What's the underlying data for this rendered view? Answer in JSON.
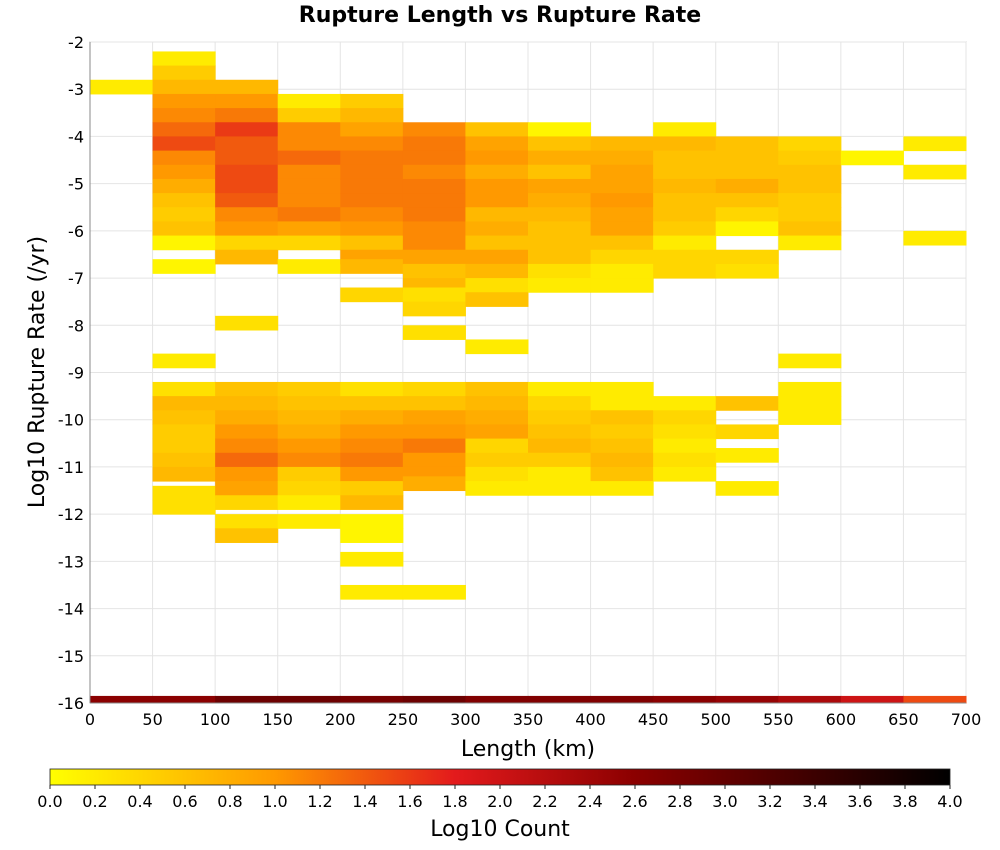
{
  "chart_data": {
    "type": "heatmap",
    "title": "Rupture Length vs Rupture Rate",
    "xlabel": "Length (km)",
    "ylabel": "Log10 Rupture Rate (/yr)",
    "xlim": [
      0,
      700
    ],
    "ylim": [
      -16,
      -2
    ],
    "x_bin_width": 50,
    "y_bin_height": 0.3,
    "grid": true,
    "x_ticks": [
      "0",
      "50",
      "100",
      "150",
      "200",
      "250",
      "300",
      "350",
      "400",
      "450",
      "500",
      "550",
      "600",
      "650",
      "700"
    ],
    "y_ticks": [
      "-2",
      "-3",
      "-4",
      "-5",
      "-6",
      "-7",
      "-8",
      "-9",
      "-10",
      "-11",
      "-12",
      "-13",
      "-14",
      "-15",
      "-16"
    ],
    "colorbar": {
      "label": "Log10 Count",
      "range": [
        0,
        4
      ],
      "ticks": [
        "0.0",
        "0.2",
        "0.4",
        "0.6",
        "0.8",
        "1.0",
        "1.2",
        "1.4",
        "1.6",
        "1.8",
        "2.0",
        "2.2",
        "2.4",
        "2.6",
        "2.8",
        "3.0",
        "3.2",
        "3.4",
        "3.6",
        "3.8",
        "4.0"
      ],
      "placement": "bottom"
    },
    "columns": [
      {
        "x": 0,
        "cells": [
          [
            -3.1,
            0.2
          ],
          [
            -16.0,
            2.6
          ]
        ]
      },
      {
        "x": 50,
        "cells": [
          [
            -2.5,
            0.2
          ],
          [
            -2.8,
            0.5
          ],
          [
            -3.1,
            0.7
          ],
          [
            -3.4,
            1.0
          ],
          [
            -3.7,
            1.1
          ],
          [
            -4.0,
            1.3
          ],
          [
            -4.3,
            1.5
          ],
          [
            -4.6,
            1.1
          ],
          [
            -4.9,
            1.0
          ],
          [
            -5.2,
            0.8
          ],
          [
            -5.5,
            0.6
          ],
          [
            -5.8,
            0.5
          ],
          [
            -6.1,
            0.6
          ],
          [
            -6.4,
            0.1
          ],
          [
            -6.9,
            0.1
          ],
          [
            -8.9,
            0.2
          ],
          [
            -9.5,
            0.3
          ],
          [
            -9.8,
            0.7
          ],
          [
            -10.1,
            0.6
          ],
          [
            -10.4,
            0.5
          ],
          [
            -10.7,
            0.5
          ],
          [
            -11.0,
            0.6
          ],
          [
            -11.3,
            0.7
          ],
          [
            -11.7,
            0.3
          ],
          [
            -12.0,
            0.3
          ],
          [
            -16.0,
            2.6
          ]
        ]
      },
      {
        "x": 100,
        "cells": [
          [
            -3.1,
            0.7
          ],
          [
            -3.4,
            1.0
          ],
          [
            -3.7,
            1.2
          ],
          [
            -4.0,
            1.6
          ],
          [
            -4.3,
            1.4
          ],
          [
            -4.6,
            1.4
          ],
          [
            -4.9,
            1.5
          ],
          [
            -5.2,
            1.5
          ],
          [
            -5.5,
            1.4
          ],
          [
            -5.8,
            1.1
          ],
          [
            -6.1,
            1.0
          ],
          [
            -6.4,
            0.4
          ],
          [
            -6.7,
            0.7
          ],
          [
            -8.1,
            0.3
          ],
          [
            -9.5,
            0.6
          ],
          [
            -9.8,
            0.7
          ],
          [
            -10.1,
            0.8
          ],
          [
            -10.4,
            1.0
          ],
          [
            -10.7,
            1.1
          ],
          [
            -11.0,
            1.3
          ],
          [
            -11.3,
            1.0
          ],
          [
            -11.6,
            0.9
          ],
          [
            -11.9,
            0.4
          ],
          [
            -12.3,
            0.3
          ],
          [
            -12.6,
            0.6
          ],
          [
            -16.0,
            2.9
          ]
        ]
      },
      {
        "x": 150,
        "cells": [
          [
            -3.4,
            0.2
          ],
          [
            -3.7,
            0.5
          ],
          [
            -4.0,
            1.1
          ],
          [
            -4.3,
            1.1
          ],
          [
            -4.6,
            1.3
          ],
          [
            -4.9,
            1.1
          ],
          [
            -5.2,
            1.1
          ],
          [
            -5.5,
            1.1
          ],
          [
            -5.8,
            1.2
          ],
          [
            -6.1,
            0.9
          ],
          [
            -6.4,
            0.4
          ],
          [
            -6.9,
            0.2
          ],
          [
            -9.5,
            0.5
          ],
          [
            -9.8,
            0.6
          ],
          [
            -10.1,
            0.7
          ],
          [
            -10.4,
            0.8
          ],
          [
            -10.7,
            1.0
          ],
          [
            -11.0,
            1.1
          ],
          [
            -11.3,
            0.5
          ],
          [
            -11.6,
            0.4
          ],
          [
            -11.9,
            0.2
          ],
          [
            -12.3,
            0.2
          ],
          [
            -16.0,
            2.9
          ]
        ]
      },
      {
        "x": 200,
        "cells": [
          [
            -3.4,
            0.5
          ],
          [
            -3.7,
            0.7
          ],
          [
            -4.0,
            0.9
          ],
          [
            -4.3,
            1.1
          ],
          [
            -4.6,
            1.2
          ],
          [
            -4.9,
            1.2
          ],
          [
            -5.2,
            1.2
          ],
          [
            -5.5,
            1.2
          ],
          [
            -5.8,
            1.1
          ],
          [
            -6.1,
            1.0
          ],
          [
            -6.4,
            0.6
          ],
          [
            -6.7,
            0.9
          ],
          [
            -6.9,
            0.7
          ],
          [
            -7.5,
            0.4
          ],
          [
            -9.5,
            0.3
          ],
          [
            -9.8,
            0.6
          ],
          [
            -10.1,
            0.8
          ],
          [
            -10.4,
            1.0
          ],
          [
            -10.7,
            1.1
          ],
          [
            -11.0,
            1.2
          ],
          [
            -11.3,
            1.0
          ],
          [
            -11.6,
            0.5
          ],
          [
            -11.9,
            0.7
          ],
          [
            -12.3,
            0.1
          ],
          [
            -12.6,
            0.1
          ],
          [
            -13.1,
            0.2
          ],
          [
            -13.8,
            0.2
          ],
          [
            -16.0,
            2.8
          ]
        ]
      },
      {
        "x": 250,
        "cells": [
          [
            -4.0,
            1.1
          ],
          [
            -4.3,
            1.2
          ],
          [
            -4.6,
            1.2
          ],
          [
            -4.9,
            1.1
          ],
          [
            -5.2,
            1.2
          ],
          [
            -5.5,
            1.2
          ],
          [
            -5.8,
            1.2
          ],
          [
            -6.1,
            1.1
          ],
          [
            -6.4,
            1.1
          ],
          [
            -6.7,
            0.9
          ],
          [
            -7.0,
            0.6
          ],
          [
            -7.3,
            0.7
          ],
          [
            -7.5,
            0.3
          ],
          [
            -7.8,
            0.4
          ],
          [
            -8.3,
            0.3
          ],
          [
            -9.5,
            0.4
          ],
          [
            -9.8,
            0.6
          ],
          [
            -10.1,
            0.9
          ],
          [
            -10.4,
            1.0
          ],
          [
            -10.7,
            1.2
          ],
          [
            -11.0,
            1.0
          ],
          [
            -11.3,
            1.0
          ],
          [
            -11.5,
            0.8
          ],
          [
            -13.8,
            0.2
          ],
          [
            -16.0,
            2.9
          ]
        ]
      },
      {
        "x": 300,
        "cells": [
          [
            -4.0,
            0.6
          ],
          [
            -4.3,
            0.9
          ],
          [
            -4.6,
            1.0
          ],
          [
            -4.9,
            0.8
          ],
          [
            -5.2,
            1.0
          ],
          [
            -5.5,
            1.0
          ],
          [
            -5.8,
            0.7
          ],
          [
            -6.1,
            0.8
          ],
          [
            -6.4,
            0.6
          ],
          [
            -6.7,
            0.9
          ],
          [
            -7.0,
            0.7
          ],
          [
            -7.3,
            0.3
          ],
          [
            -7.6,
            0.6
          ],
          [
            -8.6,
            0.2
          ],
          [
            -9.5,
            0.6
          ],
          [
            -9.8,
            0.7
          ],
          [
            -10.1,
            0.8
          ],
          [
            -10.4,
            0.9
          ],
          [
            -10.7,
            0.4
          ],
          [
            -11.0,
            0.5
          ],
          [
            -11.3,
            0.3
          ],
          [
            -11.6,
            0.2
          ],
          [
            -16.0,
            2.7
          ]
        ]
      },
      {
        "x": 350,
        "cells": [
          [
            -4.0,
            0.1
          ],
          [
            -4.3,
            0.6
          ],
          [
            -4.6,
            0.8
          ],
          [
            -4.9,
            0.6
          ],
          [
            -5.2,
            0.9
          ],
          [
            -5.5,
            0.8
          ],
          [
            -5.8,
            0.7
          ],
          [
            -6.1,
            0.6
          ],
          [
            -6.4,
            0.6
          ],
          [
            -6.7,
            0.6
          ],
          [
            -7.0,
            0.3
          ],
          [
            -7.3,
            0.2
          ],
          [
            -9.5,
            0.2
          ],
          [
            -9.8,
            0.4
          ],
          [
            -10.1,
            0.5
          ],
          [
            -10.4,
            0.6
          ],
          [
            -10.7,
            0.7
          ],
          [
            -11.0,
            0.5
          ],
          [
            -11.3,
            0.2
          ],
          [
            -11.6,
            0.2
          ],
          [
            -16.0,
            2.7
          ]
        ]
      },
      {
        "x": 400,
        "cells": [
          [
            -4.3,
            0.7
          ],
          [
            -4.6,
            0.8
          ],
          [
            -4.9,
            0.9
          ],
          [
            -5.2,
            0.9
          ],
          [
            -5.5,
            1.0
          ],
          [
            -5.8,
            0.9
          ],
          [
            -6.1,
            0.9
          ],
          [
            -6.4,
            0.6
          ],
          [
            -6.7,
            0.4
          ],
          [
            -7.0,
            0.2
          ],
          [
            -7.3,
            0.2
          ],
          [
            -9.5,
            0.2
          ],
          [
            -9.8,
            0.2
          ],
          [
            -10.1,
            0.6
          ],
          [
            -10.4,
            0.5
          ],
          [
            -10.7,
            0.6
          ],
          [
            -11.0,
            0.7
          ],
          [
            -11.3,
            0.6
          ],
          [
            -11.6,
            0.2
          ],
          [
            -16.0,
            2.7
          ]
        ]
      },
      {
        "x": 450,
        "cells": [
          [
            -4.0,
            0.2
          ],
          [
            -4.3,
            0.7
          ],
          [
            -4.6,
            0.6
          ],
          [
            -4.9,
            0.6
          ],
          [
            -5.2,
            0.7
          ],
          [
            -5.5,
            0.6
          ],
          [
            -5.8,
            0.6
          ],
          [
            -6.1,
            0.5
          ],
          [
            -6.4,
            0.2
          ],
          [
            -6.7,
            0.4
          ],
          [
            -7.0,
            0.4
          ],
          [
            -9.8,
            0.2
          ],
          [
            -10.1,
            0.4
          ],
          [
            -10.4,
            0.3
          ],
          [
            -10.7,
            0.2
          ],
          [
            -11.0,
            0.3
          ],
          [
            -11.3,
            0.2
          ],
          [
            -16.0,
            2.6
          ]
        ]
      },
      {
        "x": 500,
        "cells": [
          [
            -4.3,
            0.6
          ],
          [
            -4.6,
            0.6
          ],
          [
            -4.9,
            0.6
          ],
          [
            -5.2,
            0.8
          ],
          [
            -5.5,
            0.6
          ],
          [
            -5.8,
            0.4
          ],
          [
            -6.1,
            0.1
          ],
          [
            -6.7,
            0.4
          ],
          [
            -7.0,
            0.3
          ],
          [
            -9.8,
            0.6
          ],
          [
            -10.4,
            0.4
          ],
          [
            -10.9,
            0.2
          ],
          [
            -11.6,
            0.2
          ],
          [
            -16.0,
            2.5
          ]
        ]
      },
      {
        "x": 550,
        "cells": [
          [
            -4.3,
            0.4
          ],
          [
            -4.6,
            0.5
          ],
          [
            -4.9,
            0.6
          ],
          [
            -5.2,
            0.6
          ],
          [
            -5.5,
            0.5
          ],
          [
            -5.8,
            0.5
          ],
          [
            -6.1,
            0.6
          ],
          [
            -6.4,
            0.2
          ],
          [
            -8.9,
            0.2
          ],
          [
            -9.5,
            0.2
          ],
          [
            -9.8,
            0.2
          ],
          [
            -10.1,
            0.2
          ],
          [
            -16.0,
            2.3
          ]
        ]
      },
      {
        "x": 600,
        "cells": [
          [
            -4.6,
            0.1
          ],
          [
            -16.0,
            2.0
          ]
        ]
      },
      {
        "x": 650,
        "cells": [
          [
            -4.3,
            0.2
          ],
          [
            -4.9,
            0.2
          ],
          [
            -6.3,
            0.2
          ],
          [
            -16.0,
            1.5
          ]
        ]
      }
    ]
  }
}
